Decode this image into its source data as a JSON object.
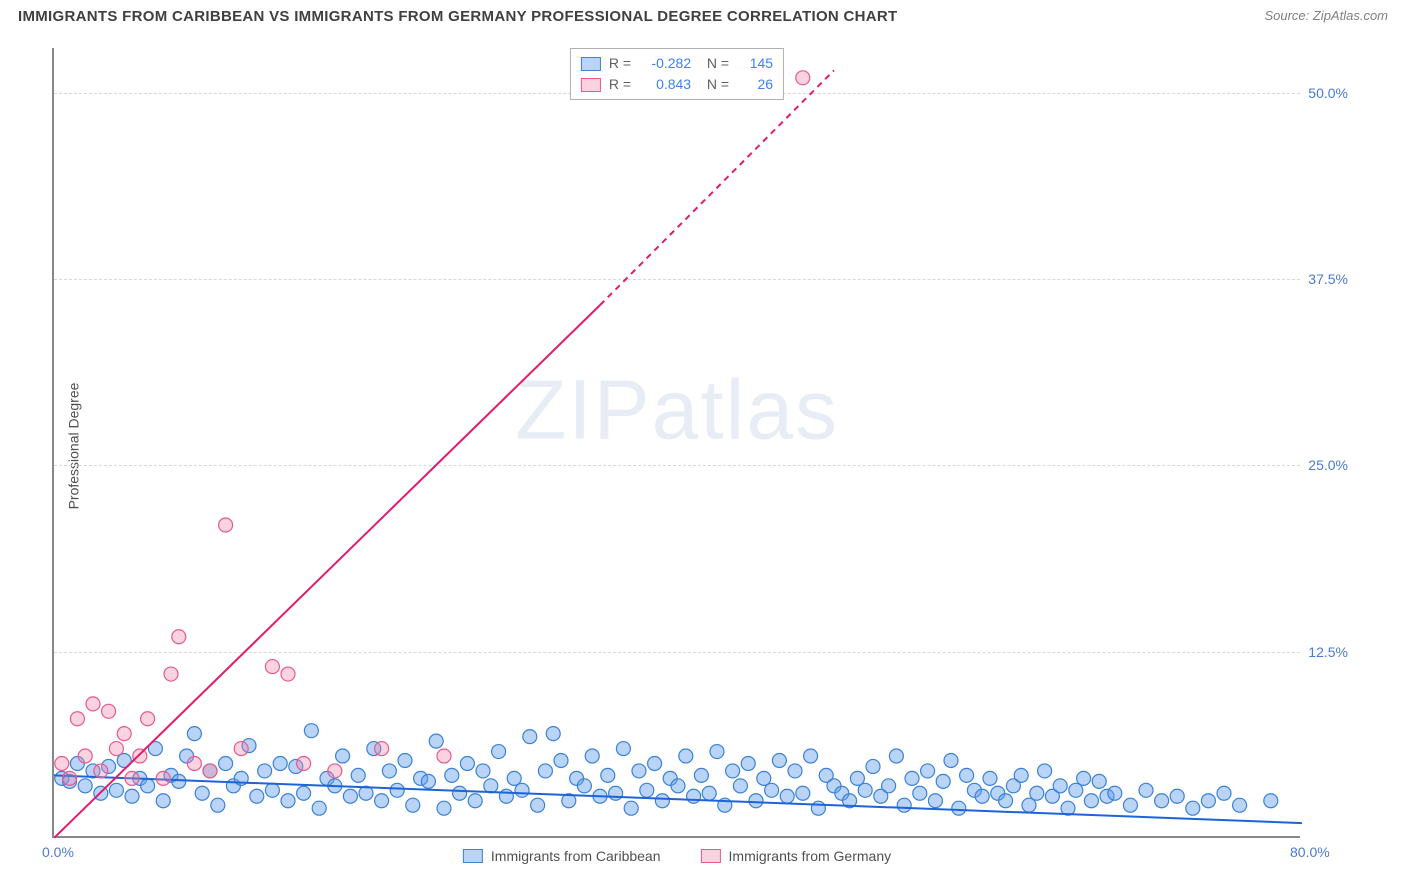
{
  "title": "IMMIGRANTS FROM CARIBBEAN VS IMMIGRANTS FROM GERMANY PROFESSIONAL DEGREE CORRELATION CHART",
  "source": "Source: ZipAtlas.com",
  "ylabel": "Professional Degree",
  "watermark": "ZIPatlas",
  "chart": {
    "type": "scatter",
    "xlim": [
      0,
      80
    ],
    "ylim": [
      0,
      53
    ],
    "xticks": [
      {
        "v": 0,
        "l": "0.0%"
      },
      {
        "v": 80,
        "l": "80.0%"
      }
    ],
    "yticks": [
      {
        "v": 12.5,
        "l": "12.5%"
      },
      {
        "v": 25,
        "l": "25.0%"
      },
      {
        "v": 37.5,
        "l": "37.5%"
      },
      {
        "v": 50,
        "l": "50.0%"
      }
    ],
    "grid_color": "#d8d8d8",
    "background_color": "#ffffff",
    "series": [
      {
        "name": "Immigrants from Caribbean",
        "marker_fill": "rgba(100,160,235,0.45)",
        "marker_stroke": "#3b82d6",
        "marker_r": 7,
        "trend_color": "#1e63d8",
        "trend_width": 2,
        "trend": {
          "x1": 0,
          "y1": 4.2,
          "x2": 80,
          "y2": 1.0,
          "dash": "none"
        },
        "R": "-0.282",
        "N": "145",
        "points": [
          [
            0.5,
            4.0
          ],
          [
            1.0,
            3.8
          ],
          [
            1.5,
            5.0
          ],
          [
            2.0,
            3.5
          ],
          [
            2.5,
            4.5
          ],
          [
            3.0,
            3.0
          ],
          [
            3.5,
            4.8
          ],
          [
            4.0,
            3.2
          ],
          [
            4.5,
            5.2
          ],
          [
            5.0,
            2.8
          ],
          [
            5.5,
            4.0
          ],
          [
            6.0,
            3.5
          ],
          [
            6.5,
            6.0
          ],
          [
            7.0,
            2.5
          ],
          [
            7.5,
            4.2
          ],
          [
            8.0,
            3.8
          ],
          [
            8.5,
            5.5
          ],
          [
            9.0,
            7.0
          ],
          [
            9.5,
            3.0
          ],
          [
            10.0,
            4.5
          ],
          [
            10.5,
            2.2
          ],
          [
            11.0,
            5.0
          ],
          [
            11.5,
            3.5
          ],
          [
            12.0,
            4.0
          ],
          [
            12.5,
            6.2
          ],
          [
            13.0,
            2.8
          ],
          [
            13.5,
            4.5
          ],
          [
            14.0,
            3.2
          ],
          [
            14.5,
            5.0
          ],
          [
            15.0,
            2.5
          ],
          [
            15.5,
            4.8
          ],
          [
            16.0,
            3.0
          ],
          [
            16.5,
            7.2
          ],
          [
            17.0,
            2.0
          ],
          [
            17.5,
            4.0
          ],
          [
            18.0,
            3.5
          ],
          [
            18.5,
            5.5
          ],
          [
            19.0,
            2.8
          ],
          [
            19.5,
            4.2
          ],
          [
            20.0,
            3.0
          ],
          [
            20.5,
            6.0
          ],
          [
            21.0,
            2.5
          ],
          [
            21.5,
            4.5
          ],
          [
            22.0,
            3.2
          ],
          [
            22.5,
            5.2
          ],
          [
            23.0,
            2.2
          ],
          [
            23.5,
            4.0
          ],
          [
            24.0,
            3.8
          ],
          [
            24.5,
            6.5
          ],
          [
            25.0,
            2.0
          ],
          [
            25.5,
            4.2
          ],
          [
            26.0,
            3.0
          ],
          [
            26.5,
            5.0
          ],
          [
            27.0,
            2.5
          ],
          [
            27.5,
            4.5
          ],
          [
            28.0,
            3.5
          ],
          [
            28.5,
            5.8
          ],
          [
            29.0,
            2.8
          ],
          [
            29.5,
            4.0
          ],
          [
            30.0,
            3.2
          ],
          [
            30.5,
            6.8
          ],
          [
            31.0,
            2.2
          ],
          [
            31.5,
            4.5
          ],
          [
            32.0,
            7.0
          ],
          [
            32.5,
            5.2
          ],
          [
            33.0,
            2.5
          ],
          [
            33.5,
            4.0
          ],
          [
            34.0,
            3.5
          ],
          [
            34.5,
            5.5
          ],
          [
            35.0,
            2.8
          ],
          [
            35.5,
            4.2
          ],
          [
            36.0,
            3.0
          ],
          [
            36.5,
            6.0
          ],
          [
            37.0,
            2.0
          ],
          [
            37.5,
            4.5
          ],
          [
            38.0,
            3.2
          ],
          [
            38.5,
            5.0
          ],
          [
            39.0,
            2.5
          ],
          [
            39.5,
            4.0
          ],
          [
            40.0,
            3.5
          ],
          [
            40.5,
            5.5
          ],
          [
            41.0,
            2.8
          ],
          [
            41.5,
            4.2
          ],
          [
            42.0,
            3.0
          ],
          [
            42.5,
            5.8
          ],
          [
            43.0,
            2.2
          ],
          [
            43.5,
            4.5
          ],
          [
            44.0,
            3.5
          ],
          [
            44.5,
            5.0
          ],
          [
            45.0,
            2.5
          ],
          [
            45.5,
            4.0
          ],
          [
            46.0,
            3.2
          ],
          [
            46.5,
            5.2
          ],
          [
            47.0,
            2.8
          ],
          [
            47.5,
            4.5
          ],
          [
            48.0,
            3.0
          ],
          [
            48.5,
            5.5
          ],
          [
            49.0,
            2.0
          ],
          [
            49.5,
            4.2
          ],
          [
            50.0,
            3.5
          ],
          [
            50.5,
            3.0
          ],
          [
            51.0,
            2.5
          ],
          [
            51.5,
            4.0
          ],
          [
            52.0,
            3.2
          ],
          [
            52.5,
            4.8
          ],
          [
            53.0,
            2.8
          ],
          [
            53.5,
            3.5
          ],
          [
            54.0,
            5.5
          ],
          [
            54.5,
            2.2
          ],
          [
            55.0,
            4.0
          ],
          [
            55.5,
            3.0
          ],
          [
            56.0,
            4.5
          ],
          [
            56.5,
            2.5
          ],
          [
            57.0,
            3.8
          ],
          [
            57.5,
            5.2
          ],
          [
            58.0,
            2.0
          ],
          [
            58.5,
            4.2
          ],
          [
            59.0,
            3.2
          ],
          [
            59.5,
            2.8
          ],
          [
            60.0,
            4.0
          ],
          [
            60.5,
            3.0
          ],
          [
            61.0,
            2.5
          ],
          [
            61.5,
            3.5
          ],
          [
            62.0,
            4.2
          ],
          [
            62.5,
            2.2
          ],
          [
            63.0,
            3.0
          ],
          [
            63.5,
            4.5
          ],
          [
            64.0,
            2.8
          ],
          [
            64.5,
            3.5
          ],
          [
            65.0,
            2.0
          ],
          [
            65.5,
            3.2
          ],
          [
            66.0,
            4.0
          ],
          [
            66.5,
            2.5
          ],
          [
            67.0,
            3.8
          ],
          [
            67.5,
            2.8
          ],
          [
            68.0,
            3.0
          ],
          [
            69.0,
            2.2
          ],
          [
            70.0,
            3.2
          ],
          [
            71.0,
            2.5
          ],
          [
            72.0,
            2.8
          ],
          [
            73.0,
            2.0
          ],
          [
            74.0,
            2.5
          ],
          [
            75.0,
            3.0
          ],
          [
            76.0,
            2.2
          ],
          [
            78.0,
            2.5
          ]
        ]
      },
      {
        "name": "Immigrants from Germany",
        "marker_fill": "rgba(240,130,165,0.35)",
        "marker_stroke": "#e85a8f",
        "marker_r": 7,
        "trend_color": "#e31b6d",
        "trend_width": 2,
        "trend": {
          "x1": 0,
          "y1": -1.0,
          "x2": 50,
          "y2": 51.5,
          "dash_after_x": 35
        },
        "R": "0.843",
        "N": "26",
        "points": [
          [
            0.5,
            5.0
          ],
          [
            1.0,
            4.0
          ],
          [
            1.5,
            8.0
          ],
          [
            2.0,
            5.5
          ],
          [
            2.5,
            9.0
          ],
          [
            3.0,
            4.5
          ],
          [
            3.5,
            8.5
          ],
          [
            4.0,
            6.0
          ],
          [
            4.5,
            7.0
          ],
          [
            5.0,
            4.0
          ],
          [
            5.5,
            5.5
          ],
          [
            6.0,
            8.0
          ],
          [
            7.0,
            4.0
          ],
          [
            7.5,
            11.0
          ],
          [
            8.0,
            13.5
          ],
          [
            9.0,
            5.0
          ],
          [
            10.0,
            4.5
          ],
          [
            11.0,
            21.0
          ],
          [
            12.0,
            6.0
          ],
          [
            14.0,
            11.5
          ],
          [
            15.0,
            11.0
          ],
          [
            16.0,
            5.0
          ],
          [
            18.0,
            4.5
          ],
          [
            21.0,
            6.0
          ],
          [
            25.0,
            5.5
          ],
          [
            48.0,
            51.0
          ]
        ]
      }
    ]
  },
  "legend_bottom": [
    {
      "label": "Immigrants from Caribbean",
      "fill": "rgba(100,160,235,0.45)",
      "stroke": "#3b82d6"
    },
    {
      "label": "Immigrants from Germany",
      "fill": "rgba(240,130,165,0.35)",
      "stroke": "#e85a8f"
    }
  ]
}
